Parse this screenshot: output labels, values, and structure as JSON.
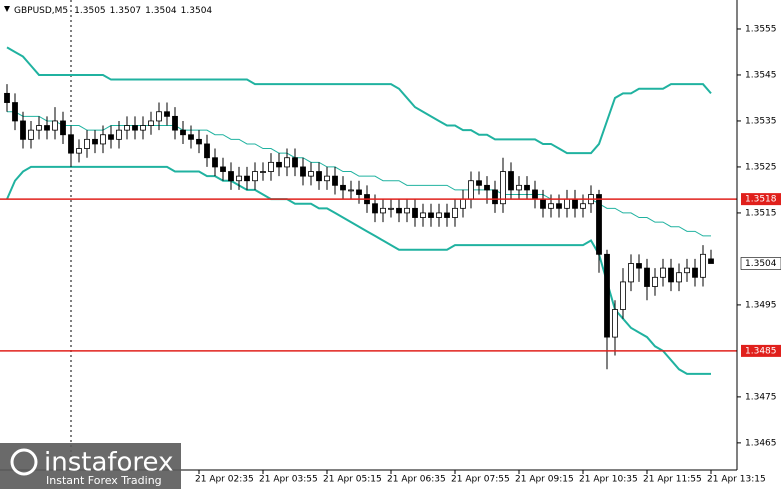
{
  "chart_data": {
    "type": "candlestick",
    "title": "GBPUSD,M5",
    "categories": [
      null,
      null,
      null,
      null,
      null,
      null,
      null,
      null,
      null,
      null,
      null,
      null,
      null,
      null,
      null,
      null,
      null,
      null,
      null,
      null,
      null,
      null,
      null,
      null,
      "21 Apr 02:35",
      null,
      null,
      null,
      null,
      null,
      null,
      null,
      "21 Apr 03:55",
      null,
      null,
      null,
      null,
      null,
      null,
      null,
      "21 Apr 05:15",
      null,
      null,
      null,
      null,
      null,
      null,
      null,
      "21 Apr 06:35",
      null,
      null,
      null,
      null,
      null,
      null,
      null,
      "21 Apr 07:55",
      null,
      null,
      null,
      null,
      null,
      null,
      null,
      "21 Apr 09:15",
      null,
      null,
      null,
      null,
      null,
      null,
      null,
      "21 Apr 10:35",
      null,
      null,
      null,
      null,
      null,
      null,
      null,
      "21 Apr 11:55",
      null,
      null,
      null,
      null,
      null,
      null,
      null,
      "21 Apr 13:15"
    ],
    "open": [
      1.3541,
      1.3539,
      1.3535,
      1.3531,
      1.3533,
      1.3534,
      1.3533,
      1.3535,
      1.3532,
      1.3528,
      1.3529,
      1.3531,
      1.353,
      1.3532,
      1.3531,
      1.3533,
      1.3534,
      1.3533,
      1.3534,
      1.3535,
      1.3537,
      1.3536,
      1.3533,
      1.3532,
      1.3531,
      1.353,
      1.3527,
      1.3525,
      1.3524,
      1.3522,
      1.3523,
      1.3522,
      1.3524,
      1.3524,
      1.3526,
      1.3525,
      1.3527,
      1.3525,
      1.3523,
      1.3524,
      1.3522,
      1.3523,
      1.3521,
      1.352,
      1.352,
      1.3519,
      1.3517,
      1.3515,
      1.3516,
      1.3516,
      1.3515,
      1.3516,
      1.3514,
      1.3515,
      1.3514,
      1.3515,
      1.3514,
      1.3516,
      1.3518,
      1.3522,
      1.3521,
      1.352,
      1.3517,
      1.3524,
      1.352,
      1.3521,
      1.352,
      1.3518,
      1.3516,
      1.3517,
      1.3516,
      1.3518,
      1.3516,
      1.3517,
      1.3519,
      1.3506,
      1.3488,
      1.3494,
      1.35,
      1.3504,
      1.3503,
      1.3499,
      1.3501,
      1.3503,
      1.35,
      1.3502,
      1.3503,
      1.3501,
      1.3505
    ],
    "high": [
      1.3543,
      1.3541,
      1.3537,
      1.3535,
      1.3536,
      1.3536,
      1.3538,
      1.3537,
      1.3534,
      1.3531,
      1.3533,
      1.3533,
      1.3534,
      1.3534,
      1.3535,
      1.3536,
      1.3536,
      1.3536,
      1.3537,
      1.3539,
      1.3539,
      1.3538,
      1.3535,
      1.3534,
      1.3533,
      1.3532,
      1.3529,
      1.3527,
      1.3526,
      1.3525,
      1.3525,
      1.3526,
      1.3526,
      1.3528,
      1.3528,
      1.3529,
      1.3529,
      1.3527,
      1.3526,
      1.3526,
      1.3525,
      1.3525,
      1.3523,
      1.3522,
      1.3522,
      1.3521,
      1.3519,
      1.3518,
      1.3518,
      1.3518,
      1.3518,
      1.3518,
      1.3517,
      1.3517,
      1.3517,
      1.3517,
      1.3518,
      1.352,
      1.3524,
      1.3524,
      1.3523,
      1.3522,
      1.3527,
      1.3526,
      1.3523,
      1.3523,
      1.3522,
      1.352,
      1.3519,
      1.3519,
      1.352,
      1.352,
      1.3519,
      1.3521,
      1.352,
      1.3507,
      1.3496,
      1.3503,
      1.3506,
      1.3506,
      1.3505,
      1.3503,
      1.3505,
      1.3505,
      1.3504,
      1.3505,
      1.3505,
      1.3508,
      1.3507
    ],
    "low": [
      1.3537,
      1.3533,
      1.3529,
      1.3529,
      1.3531,
      1.3531,
      1.3531,
      1.353,
      1.3525,
      1.3526,
      1.3527,
      1.3528,
      1.3528,
      1.3529,
      1.3529,
      1.3531,
      1.3531,
      1.3531,
      1.3532,
      1.3533,
      1.3534,
      1.3531,
      1.353,
      1.3529,
      1.3528,
      1.3525,
      1.3523,
      1.3522,
      1.352,
      1.352,
      1.352,
      1.352,
      1.3522,
      1.3522,
      1.3523,
      1.3523,
      1.3523,
      1.3521,
      1.3521,
      1.352,
      1.352,
      1.3519,
      1.3518,
      1.3518,
      1.3517,
      1.3515,
      1.3513,
      1.3513,
      1.3514,
      1.3513,
      1.3513,
      1.3512,
      1.3512,
      1.3512,
      1.3512,
      1.3512,
      1.3512,
      1.3514,
      1.3516,
      1.3519,
      1.3517,
      1.3515,
      1.3515,
      1.3518,
      1.3518,
      1.3518,
      1.3516,
      1.3514,
      1.3514,
      1.3514,
      1.3514,
      1.3514,
      1.3514,
      1.3515,
      1.3502,
      1.3481,
      1.3484,
      1.3492,
      1.3498,
      1.35,
      1.3496,
      1.3497,
      1.3499,
      1.3498,
      1.3498,
      1.35,
      1.3499,
      1.3499,
      1.3504
    ],
    "close": [
      1.3539,
      1.3535,
      1.3531,
      1.3533,
      1.3534,
      1.3533,
      1.3535,
      1.3532,
      1.3528,
      1.3529,
      1.3531,
      1.353,
      1.3532,
      1.3531,
      1.3533,
      1.3534,
      1.3533,
      1.3534,
      1.3535,
      1.3537,
      1.3536,
      1.3533,
      1.3532,
      1.3531,
      1.353,
      1.3527,
      1.3525,
      1.3524,
      1.3522,
      1.3523,
      1.3522,
      1.3524,
      1.3524,
      1.3526,
      1.3525,
      1.3527,
      1.3525,
      1.3523,
      1.3524,
      1.3522,
      1.3523,
      1.3521,
      1.352,
      1.352,
      1.3519,
      1.3517,
      1.3515,
      1.3516,
      1.3516,
      1.3515,
      1.3516,
      1.3514,
      1.3515,
      1.3514,
      1.3515,
      1.3514,
      1.3516,
      1.3518,
      1.3522,
      1.3521,
      1.352,
      1.3517,
      1.3524,
      1.352,
      1.3521,
      1.352,
      1.3518,
      1.3516,
      1.3517,
      1.3516,
      1.3518,
      1.3516,
      1.3517,
      1.3519,
      1.3506,
      1.3488,
      1.3494,
      1.35,
      1.3504,
      1.3503,
      1.3499,
      1.3501,
      1.3503,
      1.35,
      1.3502,
      1.3503,
      1.3501,
      1.3506,
      1.3504
    ],
    "bands": {
      "color": "#20b2a0",
      "upper": [
        1.3551,
        1.355,
        1.3549,
        1.3547,
        1.3545,
        1.3545,
        1.3545,
        1.3545,
        1.3545,
        1.3545,
        1.3545,
        1.3545,
        1.3545,
        1.3544,
        1.3544,
        1.3544,
        1.3544,
        1.3544,
        1.3544,
        1.3544,
        1.3544,
        1.3544,
        1.3544,
        1.3544,
        1.3544,
        1.3544,
        1.3544,
        1.3544,
        1.3544,
        1.3544,
        1.3544,
        1.3543,
        1.3543,
        1.3543,
        1.3543,
        1.3543,
        1.3543,
        1.3543,
        1.3543,
        1.3543,
        1.3543,
        1.3543,
        1.3543,
        1.3543,
        1.3543,
        1.3543,
        1.3543,
        1.3543,
        1.3543,
        1.3542,
        1.354,
        1.3538,
        1.3537,
        1.3536,
        1.3535,
        1.3534,
        1.3534,
        1.3533,
        1.3533,
        1.3532,
        1.3532,
        1.3531,
        1.3531,
        1.3531,
        1.3531,
        1.3531,
        1.3531,
        1.353,
        1.353,
        1.3529,
        1.3528,
        1.3528,
        1.3528,
        1.3528,
        1.353,
        1.3535,
        1.354,
        1.3541,
        1.3541,
        1.3542,
        1.3542,
        1.3542,
        1.3542,
        1.3543,
        1.3543,
        1.3543,
        1.3543,
        1.3543,
        1.3541
      ],
      "middle": [
        1.3537,
        1.3537,
        1.3536,
        1.3536,
        1.3536,
        1.3535,
        1.3535,
        1.3534,
        1.3534,
        1.3534,
        1.3533,
        1.3533,
        1.3533,
        1.3534,
        1.3534,
        1.3534,
        1.3534,
        1.3534,
        1.3534,
        1.3534,
        1.3534,
        1.3534,
        1.3533,
        1.3533,
        1.3533,
        1.3533,
        1.3532,
        1.3532,
        1.3531,
        1.3531,
        1.353,
        1.353,
        1.3529,
        1.3529,
        1.3528,
        1.3528,
        1.3527,
        1.3527,
        1.3526,
        1.3526,
        1.3525,
        1.3525,
        1.3524,
        1.3524,
        1.3523,
        1.3523,
        1.3523,
        1.3522,
        1.3522,
        1.3522,
        1.3521,
        1.3521,
        1.3521,
        1.3521,
        1.3521,
        1.3521,
        1.352,
        1.352,
        1.352,
        1.352,
        1.352,
        1.352,
        1.3519,
        1.3519,
        1.3519,
        1.3519,
        1.3519,
        1.3519,
        1.3518,
        1.3518,
        1.3518,
        1.3518,
        1.3518,
        1.3518,
        1.3517,
        1.3516,
        1.3516,
        1.3515,
        1.3515,
        1.3514,
        1.3514,
        1.3513,
        1.3513,
        1.3512,
        1.3512,
        1.3511,
        1.3511,
        1.351,
        1.351
      ],
      "lower": [
        1.3518,
        1.3522,
        1.3524,
        1.3525,
        1.3525,
        1.3525,
        1.3525,
        1.3525,
        1.3525,
        1.3525,
        1.3525,
        1.3525,
        1.3525,
        1.3525,
        1.3525,
        1.3525,
        1.3525,
        1.3525,
        1.3525,
        1.3525,
        1.3525,
        1.3524,
        1.3524,
        1.3524,
        1.3524,
        1.3523,
        1.3523,
        1.3522,
        1.3522,
        1.3521,
        1.352,
        1.352,
        1.3519,
        1.3518,
        1.3518,
        1.3518,
        1.3517,
        1.3517,
        1.3517,
        1.3516,
        1.3516,
        1.3515,
        1.3514,
        1.3513,
        1.3512,
        1.3511,
        1.351,
        1.3509,
        1.3508,
        1.3507,
        1.3507,
        1.3507,
        1.3507,
        1.3507,
        1.3507,
        1.3507,
        1.3508,
        1.3508,
        1.3508,
        1.3508,
        1.3508,
        1.3508,
        1.3508,
        1.3508,
        1.3508,
        1.3508,
        1.3508,
        1.3508,
        1.3508,
        1.3508,
        1.3508,
        1.3508,
        1.3508,
        1.3509,
        1.3506,
        1.35,
        1.3494,
        1.3492,
        1.349,
        1.3489,
        1.3488,
        1.3486,
        1.3485,
        1.3483,
        1.3481,
        1.348,
        1.348,
        1.348,
        1.348
      ]
    },
    "levels": [
      1.3518,
      1.3485
    ],
    "level_color": "#e0201c",
    "bull_color": "#ffffff",
    "bear_color": "#000000",
    "ylim": [
      1.34591,
      1.35613
    ],
    "yticks": [
      1.3465,
      1.3475,
      1.3495,
      1.3515,
      1.3525,
      1.3535,
      1.3545,
      1.3555
    ],
    "watermark": {
      "brand": "instaforex",
      "tagline": "Instant Forex Trading"
    }
  }
}
